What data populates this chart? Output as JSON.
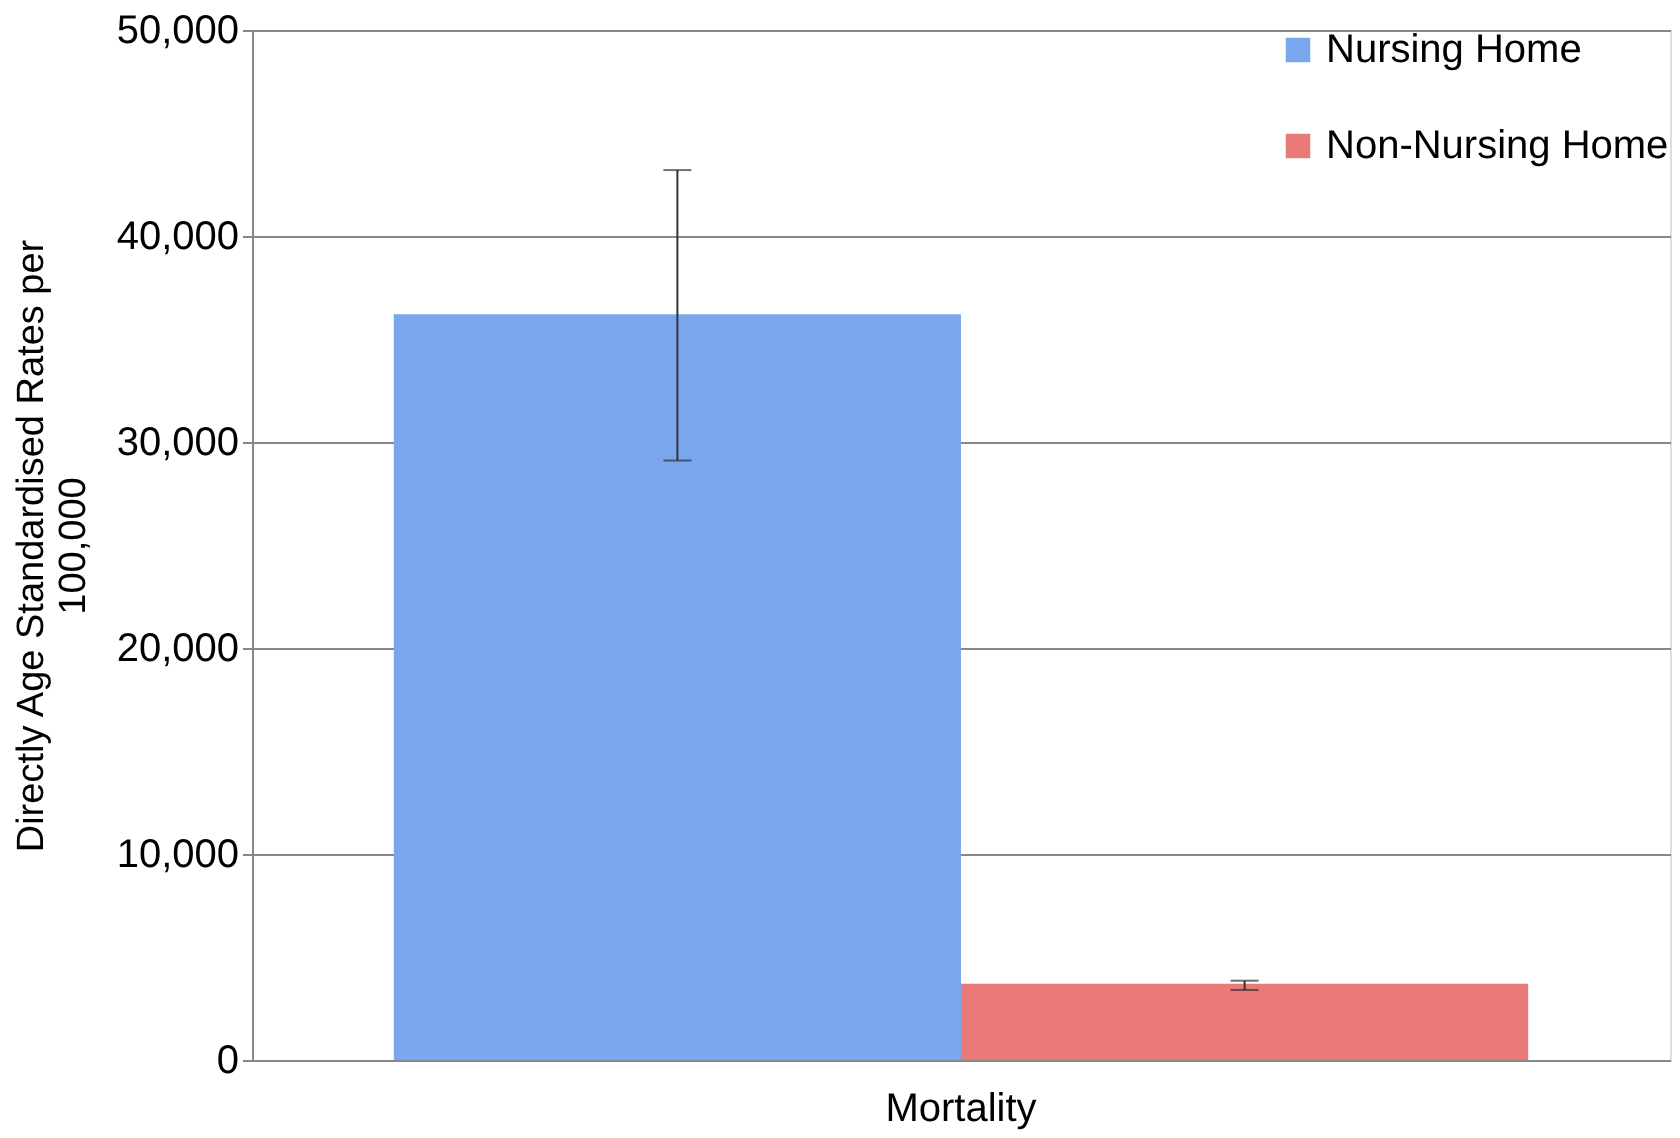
{
  "chart_data": {
    "type": "bar",
    "ylabel": "Directly Age Standardised Rates per 100,000",
    "categories": [
      "Mortality"
    ],
    "series": [
      {
        "name": "Nursing Home",
        "color": "#7aa7ee",
        "values": [
          36200
        ],
        "errors": [
          [
            29100,
            43200
          ]
        ]
      },
      {
        "name": "Non-Nursing Home",
        "color": "#ea7a78",
        "values": [
          3700
        ],
        "errors": [
          [
            3400,
            3850
          ]
        ]
      }
    ],
    "ylim": [
      0,
      50000
    ],
    "yticks": [
      0,
      {
        "value": 10000,
        "label": "10,000"
      },
      {
        "value": 20000,
        "label": "20,000"
      },
      {
        "value": 30000,
        "label": "30,000"
      },
      {
        "value": 40000,
        "label": "40,000"
      },
      {
        "value": 50000,
        "label": "50,000"
      }
    ],
    "grid": "y",
    "legend": "top right"
  }
}
